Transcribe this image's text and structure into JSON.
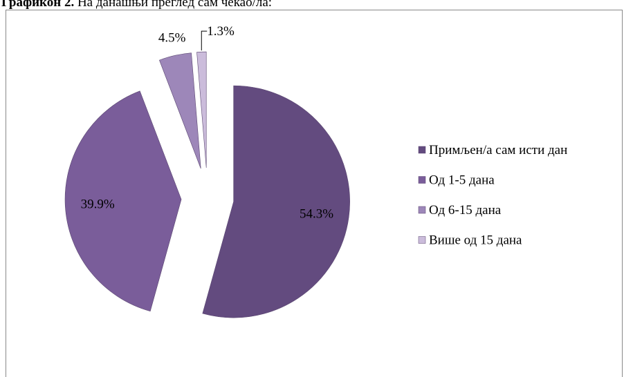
{
  "chart_data": {
    "type": "pie",
    "title": "Графикон 2.",
    "subtitle": "На данашњи преглед сам чекао/ла:",
    "categories": [
      "Примљен/а сам исти дан",
      "Од 1-5 дана",
      "Од 6-15 дана",
      "Више од 15 дана"
    ],
    "values": [
      54.3,
      39.9,
      4.5,
      1.3
    ],
    "value_labels": [
      "54.3%",
      "39.9%",
      "4.5%",
      "1.3%"
    ],
    "colors": [
      "#634b7f",
      "#7a5d9a",
      "#9d87b9",
      "#cbbcdb"
    ],
    "legend": "right"
  }
}
